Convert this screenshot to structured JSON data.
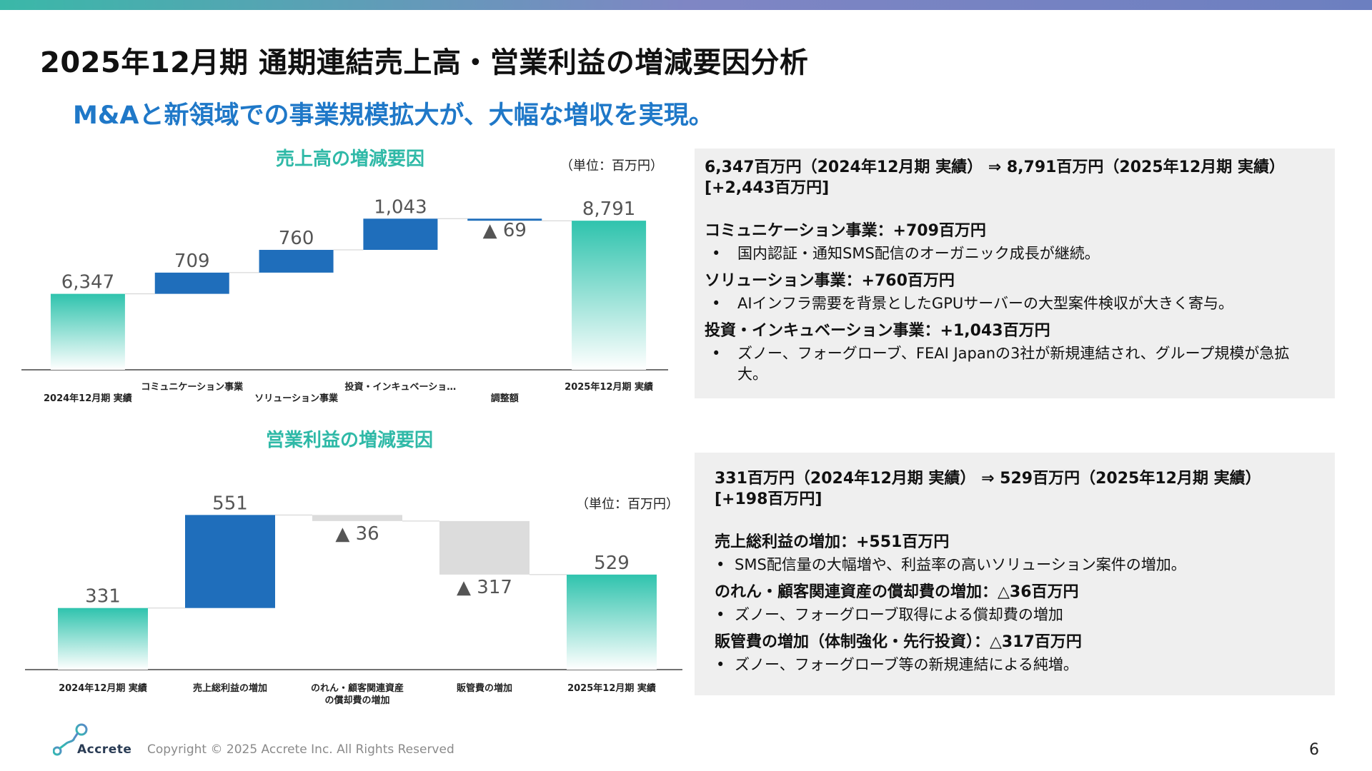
{
  "header": {
    "title": "2025年12月期 通期連結売上高・営業利益の増減要因分析",
    "subtitle": "M&Aと新領域での事業規模拡大が、大幅な増収を実現。"
  },
  "colors": {
    "teal": "#2fc3ad",
    "blue": "#1f6ebb",
    "gray": "#dcdcdc",
    "accent_blue": "#1f78c8"
  },
  "chart_data": [
    {
      "type": "bar",
      "subtype": "waterfall",
      "title": "売上高の増減要因",
      "unit": "（単位：百万円）",
      "categories": [
        "2024年12月期 実績",
        "コミュニケーション事業",
        "ソリューション事業",
        "投資・インキュベーショ…",
        "調整額",
        "2025年12月期 実績"
      ],
      "values": [
        6347,
        709,
        760,
        1043,
        -69,
        8791
      ],
      "labels": [
        "6,347",
        "709",
        "760",
        "1,043",
        "▲ 69",
        "8,791"
      ],
      "kinds": [
        "total",
        "increase",
        "increase",
        "increase",
        "decrease",
        "total"
      ]
    },
    {
      "type": "bar",
      "subtype": "waterfall",
      "title": "営業利益の増減要因",
      "unit": "（単位：百万円）",
      "categories": [
        "2024年12月期 実績",
        "売上総利益の増加",
        "のれん・顧客関連資産\nの償却費の増加",
        "販管費の増加",
        "2025年12月期 実績"
      ],
      "values": [
        331,
        551,
        -36,
        -317,
        529
      ],
      "labels": [
        "331",
        "551",
        "▲ 36",
        "▲ 317",
        "529"
      ],
      "kinds": [
        "total",
        "increase",
        "decrease",
        "decrease",
        "total"
      ]
    }
  ],
  "panel1": {
    "headline": "6,347百万円（2024年12月期 実績） ⇒ 8,791百万円（2025年12月期 実績） [+2,443百万円]",
    "sections": [
      {
        "title": "コミュニケーション事業：+709百万円",
        "bullet": "国内認証・通知SMS配信のオーガニック成長が継続。"
      },
      {
        "title": "ソリューション事業：+760百万円",
        "bullet": "AIインフラ需要を背景としたGPUサーバーの大型案件検収が大きく寄与。"
      },
      {
        "title": "投資・インキュベーション事業：+1,043百万円",
        "bullet": "ズノー、フォーグローブ、FEAI Japanの3社が新規連結され、グループ規模が急拡大。"
      }
    ]
  },
  "panel2": {
    "headline": "331百万円（2024年12月期 実績） ⇒ 529百万円（2025年12月期 実績） [+198百万円]",
    "sections": [
      {
        "title": "売上総利益の増加：+551百万円",
        "bullet": "SMS配信量の大幅増や、利益率の高いソリューション案件の増加。"
      },
      {
        "title": "のれん・顧客関連資産の償却費の増加：△36百万円",
        "bullet": "ズノー、フォーグローブ取得による償却費の増加"
      },
      {
        "title": "販管費の増加（体制強化・先行投資）：△317百万円",
        "bullet": "ズノー、フォーグローブ等の新規連結による純増。"
      }
    ]
  },
  "footer": {
    "copyright": "Copyright © 2025 Accrete Inc. All Rights Reserved",
    "page_number": "6",
    "logo_text": "Accrete",
    "bullet_char": "•"
  }
}
